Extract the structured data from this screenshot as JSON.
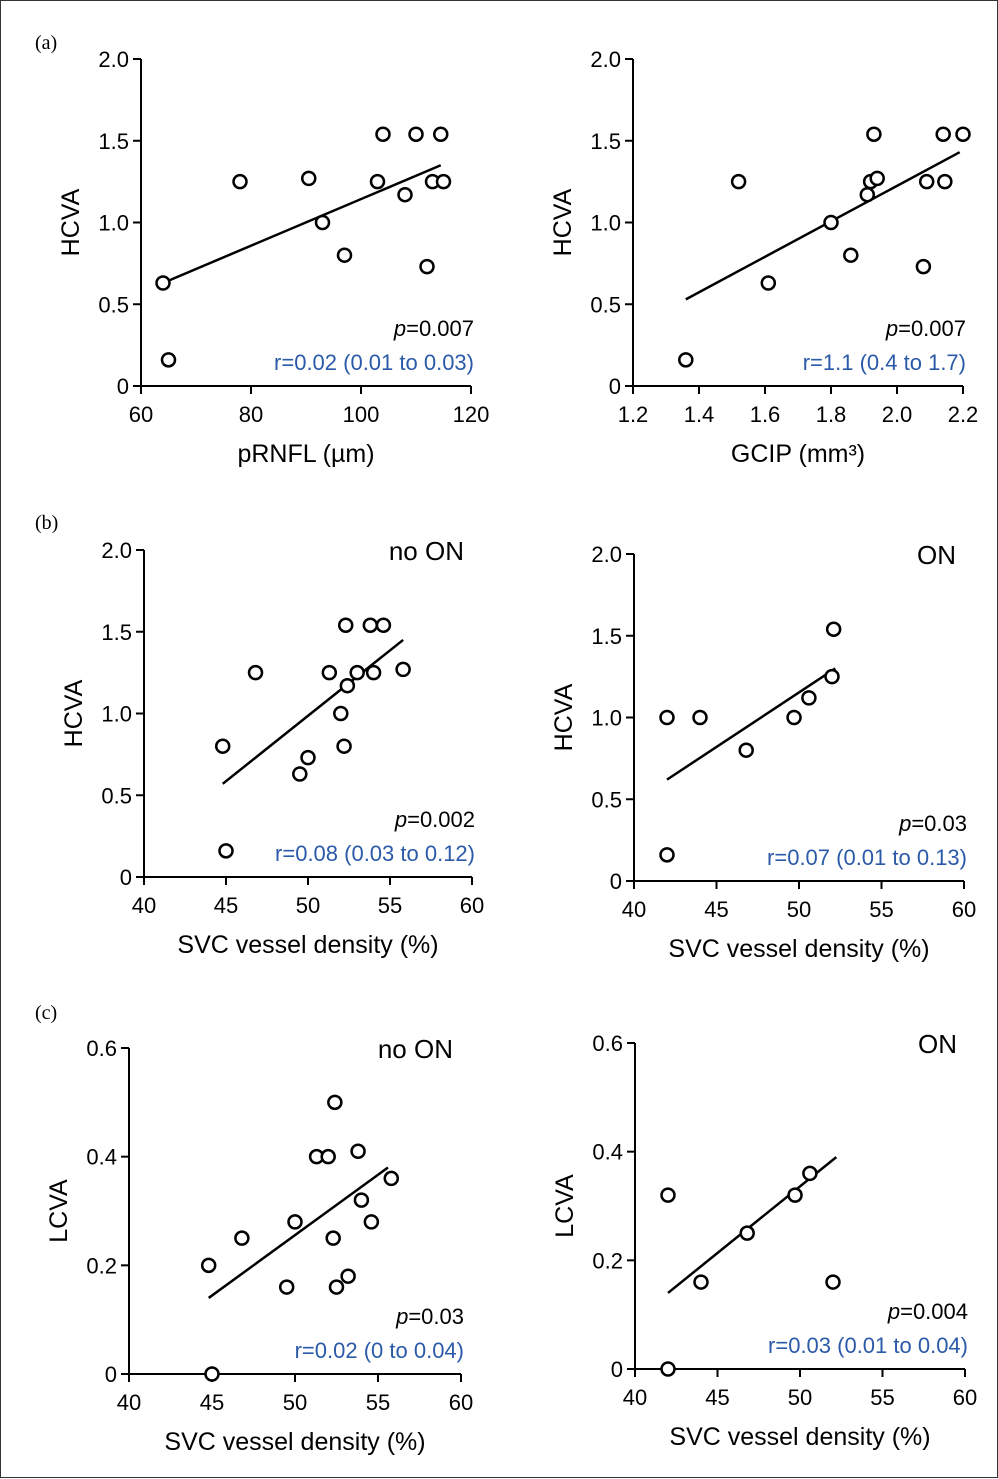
{
  "colors": {
    "stat_r": "#2b5aa8",
    "ink": "#000000"
  },
  "panel_labels": [
    "(a)",
    "(b)",
    "(c)"
  ],
  "chart_data": [
    {
      "type": "scatter",
      "panel": "(a)",
      "subtitle": "",
      "xlabel": "pRNFL (µm)",
      "ylabel": "HCVA",
      "xlim": [
        60,
        120
      ],
      "ylim": [
        0,
        2.0
      ],
      "xticks": [
        60,
        80,
        100,
        120
      ],
      "xtick_labels": [
        "60",
        "80",
        "100",
        "120"
      ],
      "yticks": [
        0,
        0.5,
        1.0,
        1.5,
        2.0
      ],
      "ytick_labels": [
        "0",
        "0.5",
        "1.0",
        "1.5",
        "2.0"
      ],
      "points": [
        [
          64,
          0.63
        ],
        [
          65,
          0.16
        ],
        [
          78,
          1.25
        ],
        [
          90.5,
          1.27
        ],
        [
          93,
          1.0
        ],
        [
          97,
          0.8
        ],
        [
          103,
          1.25
        ],
        [
          104,
          1.54
        ],
        [
          108,
          1.17
        ],
        [
          110,
          1.54
        ],
        [
          112,
          0.73
        ],
        [
          113,
          1.25
        ],
        [
          114.5,
          1.54
        ],
        [
          115,
          1.25
        ]
      ],
      "fit": [
        [
          64,
          0.63
        ],
        [
          114.5,
          1.35
        ]
      ],
      "p_text": "=0.007",
      "r_text": "r=0.02 (0.01 to 0.03)"
    },
    {
      "type": "scatter",
      "panel": "(a)",
      "subtitle": "",
      "xlabel": "GCIP (mm³)",
      "ylabel": "HCVA",
      "xlim": [
        1.2,
        2.2
      ],
      "ylim": [
        0,
        2.0
      ],
      "xticks": [
        1.2,
        1.4,
        1.6,
        1.8,
        2.0,
        2.2
      ],
      "xtick_labels": [
        "1.2",
        "1.4",
        "1.6",
        "1.8",
        "2.0",
        "2.2"
      ],
      "yticks": [
        0,
        0.5,
        1.0,
        1.5,
        2.0
      ],
      "ytick_labels": [
        "0",
        "0.5",
        "1.0",
        "1.5",
        "2.0"
      ],
      "points": [
        [
          1.36,
          0.16
        ],
        [
          1.52,
          1.25
        ],
        [
          1.61,
          0.63
        ],
        [
          1.8,
          1.0
        ],
        [
          1.86,
          0.8
        ],
        [
          1.91,
          1.17
        ],
        [
          1.92,
          1.25
        ],
        [
          1.93,
          1.54
        ],
        [
          1.94,
          1.27
        ],
        [
          2.08,
          0.73
        ],
        [
          2.09,
          1.25
        ],
        [
          2.14,
          1.54
        ],
        [
          2.145,
          1.25
        ],
        [
          2.2,
          1.54
        ]
      ],
      "fit": [
        [
          1.36,
          0.53
        ],
        [
          2.19,
          1.43
        ]
      ],
      "p_text": "=0.007",
      "r_text": "r=1.1 (0.4 to 1.7)"
    },
    {
      "type": "scatter",
      "panel": "(b)",
      "subtitle": "no ON",
      "xlabel": "SVC vessel density (%)",
      "ylabel": "HCVA",
      "xlim": [
        40,
        60
      ],
      "ylim": [
        0,
        2.0
      ],
      "xticks": [
        40,
        45,
        50,
        55,
        60
      ],
      "xtick_labels": [
        "40",
        "45",
        "50",
        "55",
        "60"
      ],
      "yticks": [
        0,
        0.5,
        1.0,
        1.5,
        2.0
      ],
      "ytick_labels": [
        "0",
        "0.5",
        "1.0",
        "1.5",
        "2.0"
      ],
      "points": [
        [
          44.8,
          0.8
        ],
        [
          45,
          0.16
        ],
        [
          46.8,
          1.25
        ],
        [
          49.5,
          0.63
        ],
        [
          50,
          0.73
        ],
        [
          51.3,
          1.25
        ],
        [
          52,
          1.0
        ],
        [
          52.2,
          0.8
        ],
        [
          52.3,
          1.54
        ],
        [
          52.4,
          1.17
        ],
        [
          53,
          1.25
        ],
        [
          53.8,
          1.54
        ],
        [
          54,
          1.25
        ],
        [
          54.6,
          1.54
        ],
        [
          55.8,
          1.27
        ]
      ],
      "fit": [
        [
          44.8,
          0.57
        ],
        [
          55.8,
          1.45
        ]
      ],
      "p_text": "=0.002",
      "r_text": "r=0.08 (0.03 to 0.12)"
    },
    {
      "type": "scatter",
      "panel": "(b)",
      "subtitle": "ON",
      "xlabel": "SVC vessel density (%)",
      "ylabel": "HCVA",
      "xlim": [
        40,
        60
      ],
      "ylim": [
        0,
        2.0
      ],
      "xticks": [
        40,
        45,
        50,
        55,
        60
      ],
      "xtick_labels": [
        "40",
        "45",
        "50",
        "55",
        "60"
      ],
      "yticks": [
        0,
        0.5,
        1.0,
        1.5,
        2.0
      ],
      "ytick_labels": [
        "0",
        "0.5",
        "1.0",
        "1.5",
        "2.0"
      ],
      "points": [
        [
          42,
          1.0
        ],
        [
          42,
          0.16
        ],
        [
          44,
          1.0
        ],
        [
          46.8,
          0.8
        ],
        [
          49.7,
          1.0
        ],
        [
          50.6,
          1.12
        ],
        [
          52,
          1.25
        ],
        [
          52.1,
          1.54
        ]
      ],
      "fit": [
        [
          42,
          0.62
        ],
        [
          52.2,
          1.3
        ]
      ],
      "p_text": "=0.03",
      "r_text": "r=0.07 (0.01 to 0.13)"
    },
    {
      "type": "scatter",
      "panel": "(c)",
      "subtitle": "no ON",
      "xlabel": "SVC vessel density (%)",
      "ylabel": "LCVA",
      "xlim": [
        40,
        60
      ],
      "ylim": [
        0,
        0.6
      ],
      "xticks": [
        40,
        45,
        50,
        55,
        60
      ],
      "xtick_labels": [
        "40",
        "45",
        "50",
        "55",
        "60"
      ],
      "yticks": [
        0,
        0.2,
        0.4,
        0.6
      ],
      "ytick_labels": [
        "0",
        "0.2",
        "0.4",
        "0.6"
      ],
      "points": [
        [
          44.8,
          0.2
        ],
        [
          45,
          0.0
        ],
        [
          46.8,
          0.25
        ],
        [
          49.5,
          0.16
        ],
        [
          50,
          0.28
        ],
        [
          51.3,
          0.4
        ],
        [
          52,
          0.4
        ],
        [
          52.3,
          0.25
        ],
        [
          52.4,
          0.5
        ],
        [
          52.5,
          0.16
        ],
        [
          53.2,
          0.18
        ],
        [
          53.8,
          0.41
        ],
        [
          54,
          0.32
        ],
        [
          54.6,
          0.28
        ],
        [
          55.8,
          0.36
        ]
      ],
      "fit": [
        [
          44.8,
          0.14
        ],
        [
          55.6,
          0.38
        ]
      ],
      "p_text": "=0.03",
      "r_text": "r=0.02 (0 to 0.04)"
    },
    {
      "type": "scatter",
      "panel": "(c)",
      "subtitle": "ON",
      "xlabel": "SVC vessel density (%)",
      "ylabel": "LCVA",
      "xlim": [
        40,
        60
      ],
      "ylim": [
        0,
        0.6
      ],
      "xticks": [
        40,
        45,
        50,
        55,
        60
      ],
      "xtick_labels": [
        "40",
        "45",
        "50",
        "55",
        "60"
      ],
      "yticks": [
        0,
        0.2,
        0.4,
        0.6
      ],
      "ytick_labels": [
        "0",
        "0.2",
        "0.4",
        "0.6"
      ],
      "points": [
        [
          42,
          0.32
        ],
        [
          42,
          0.0
        ],
        [
          44,
          0.16
        ],
        [
          46.8,
          0.25
        ],
        [
          49.7,
          0.32
        ],
        [
          50.6,
          0.36
        ],
        [
          52,
          0.16
        ]
      ],
      "fit": [
        [
          42,
          0.14
        ],
        [
          52.2,
          0.39
        ]
      ],
      "p_text": "=0.004",
      "r_text": "r=0.03 (0.01 to 0.04)"
    }
  ]
}
